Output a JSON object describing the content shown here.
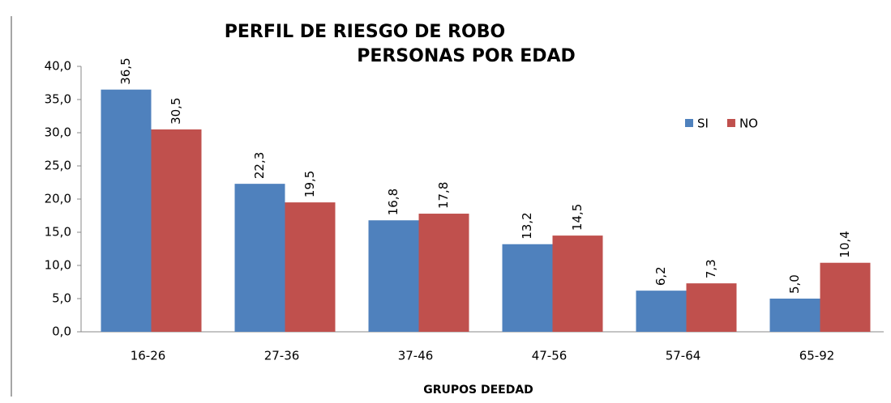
{
  "chart_data": {
    "type": "bar",
    "title": [
      "PERFIL DE RIESGO DE ROBO",
      "PERSONAS POR EDAD"
    ],
    "x_label": "GRUPOS DEEDAD",
    "categories": [
      "16-26",
      "27-36",
      "37-46",
      "47-56",
      "57-64",
      "65-92"
    ],
    "series": [
      {
        "name": "SI",
        "color": "#4f81bd",
        "values": [
          36.5,
          22.3,
          16.8,
          13.2,
          6.2,
          5.0
        ],
        "value_labels": [
          "36,5",
          "22,3",
          "16,8",
          "13,2",
          "6,2",
          "5,0"
        ]
      },
      {
        "name": "NO",
        "color": "#c0504d",
        "values": [
          30.5,
          19.5,
          17.8,
          14.5,
          7.3,
          10.4
        ],
        "value_labels": [
          "30,5",
          "19,5",
          "17,8",
          "14,5",
          "7,3",
          "10,4"
        ]
      }
    ],
    "ylim": [
      0,
      40
    ],
    "yticks": [
      {
        "value": 0,
        "label": "0,0"
      },
      {
        "value": 5,
        "label": "5,0"
      },
      {
        "value": 10,
        "label": "10,0"
      },
      {
        "value": 15,
        "label": "15,0"
      },
      {
        "value": 20,
        "label": "20,0"
      },
      {
        "value": 25,
        "label": "25,0"
      },
      {
        "value": 30,
        "label": "30,0"
      },
      {
        "value": 35,
        "label": "35,0"
      },
      {
        "value": 40,
        "label": "40,0"
      }
    ],
    "legend": "upper right"
  }
}
